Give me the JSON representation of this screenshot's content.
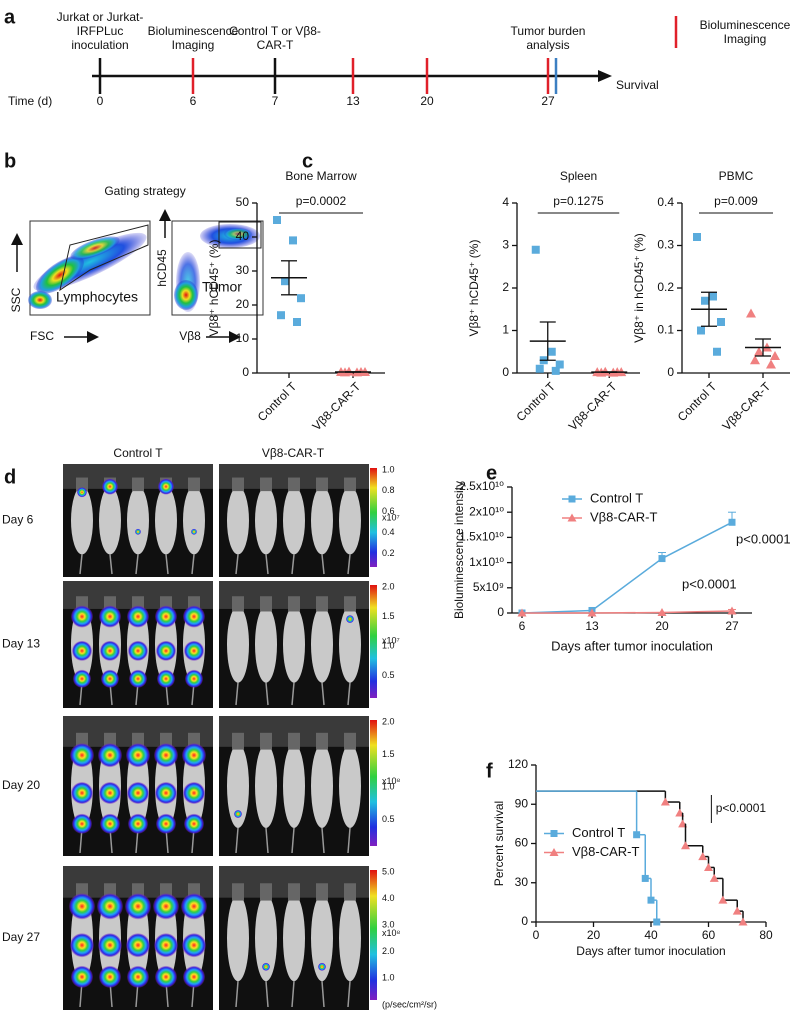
{
  "figure": {
    "panel_labels": [
      "a",
      "b",
      "c",
      "d",
      "e",
      "f"
    ],
    "timeline": {
      "time_label": "Time (d)",
      "end_label": "Survival",
      "legend": "Bioluminescence Imaging",
      "legend_color": "#e0202a",
      "events": [
        {
          "day": 0,
          "label": "Jurkat or Jurkat-IRFPLuc inoculation",
          "color": "#111111"
        },
        {
          "day": 6,
          "label": "Bioluminescence Imaging",
          "color": "#e0202a"
        },
        {
          "day": 7,
          "label": "Control T or Vβ8-CAR-T",
          "color": "#111111"
        },
        {
          "day": 13,
          "color": "#e0202a"
        },
        {
          "day": 20,
          "color": "#e0202a"
        },
        {
          "day": 27,
          "label": "Tumor burden analysis",
          "color": "#e0202a"
        }
      ]
    },
    "gating": {
      "title": "Gating strategy",
      "plot1": {
        "ylabel": "SSC",
        "xlabel": "FSC",
        "gate": "Lymphocytes"
      },
      "plot2": {
        "ylabel": "hCD45",
        "xlabel": "Vβ8",
        "gate": "Tumor"
      }
    },
    "imaging": {
      "columns": [
        "Control T",
        "Vβ8-CAR-T"
      ],
      "rows": [
        {
          "label": "Day 6",
          "scale_ticks": [
            "1.0",
            "0.8",
            "0.6",
            "0.4",
            "0.2"
          ],
          "multiplier": "x10⁷"
        },
        {
          "label": "Day 13",
          "scale_ticks": [
            "2.0",
            "1.5",
            "1.0",
            "0.5"
          ],
          "multiplier": "x10⁷"
        },
        {
          "label": "Day 20",
          "scale_ticks": [
            "2.0",
            "1.5",
            "1.0",
            "0.5"
          ],
          "multiplier": "x10⁸"
        },
        {
          "label": "Day 27",
          "scale_ticks": [
            "5.0",
            "4.0",
            "3.0",
            "2.0",
            "1.0"
          ],
          "multiplier": "x10⁸"
        }
      ],
      "unit": "(p/sec/cm²/sr)"
    }
  },
  "chart_data": [
    {
      "type": "dot",
      "title": "Bone Marrow",
      "ylabel": "Vβ8⁺ hCD45⁺ (%)",
      "categories": [
        "Control T",
        "Vβ8-CAR-T"
      ],
      "groups": [
        {
          "color": "#5aabdc",
          "marker": "square",
          "values": [
            45,
            39,
            27,
            22,
            17,
            15
          ],
          "mean": 28,
          "sem": 5
        },
        {
          "color": "#f08080",
          "marker": "triangle",
          "values": [
            0.3,
            0.2,
            0.4,
            0.3,
            0.2,
            0.3
          ],
          "mean": 0.3,
          "sem": 0.05
        }
      ],
      "ylim": [
        0,
        50
      ],
      "yticks": [
        0,
        10,
        20,
        30,
        40,
        50
      ],
      "annotation": "p=0.0002"
    },
    {
      "type": "dot",
      "title": "Spleen",
      "ylabel": "Vβ8⁺ hCD45⁺ (%)",
      "categories": [
        "Control T",
        "Vβ8-CAR-T"
      ],
      "groups": [
        {
          "color": "#5aabdc",
          "marker": "square",
          "values": [
            2.9,
            0.5,
            0.3,
            0.2,
            0.1,
            0.05
          ],
          "mean": 0.75,
          "sem": 0.45
        },
        {
          "color": "#f08080",
          "marker": "triangle",
          "values": [
            0.02,
            0.01,
            0.03,
            0.02,
            0.01,
            0.02
          ],
          "mean": 0.02,
          "sem": 0.005
        }
      ],
      "ylim": [
        0,
        4
      ],
      "yticks": [
        0,
        1,
        2,
        3,
        4
      ],
      "annotation": "p=0.1275"
    },
    {
      "type": "dot",
      "title": "PBMC",
      "ylabel": "Vβ8⁺ in hCD45⁺ (%)",
      "categories": [
        "Control T",
        "Vβ8-CAR-T"
      ],
      "groups": [
        {
          "color": "#5aabdc",
          "marker": "square",
          "values": [
            0.32,
            0.18,
            0.17,
            0.12,
            0.1,
            0.05
          ],
          "mean": 0.15,
          "sem": 0.04
        },
        {
          "color": "#f08080",
          "marker": "triangle",
          "values": [
            0.14,
            0.06,
            0.05,
            0.04,
            0.03,
            0.02
          ],
          "mean": 0.06,
          "sem": 0.02
        }
      ],
      "ylim": [
        0,
        0.4
      ],
      "yticks": [
        0,
        0.1,
        0.2,
        0.3,
        0.4
      ],
      "annotation": "p=0.009"
    },
    {
      "type": "line",
      "xlabel": "Days after tumor inoculation",
      "ylabel": "Bioluminescence intensity",
      "x": [
        6,
        13,
        20,
        27
      ],
      "xlim": [
        5,
        29
      ],
      "xticks": [
        6,
        13,
        20,
        27
      ],
      "ylim": [
        0,
        25000000000
      ],
      "yticks": [
        0,
        {
          "value": 5000000000,
          "label": "5x10⁹"
        },
        {
          "value": 10000000000,
          "label": "1x10¹⁰"
        },
        {
          "value": 15000000000,
          "label": "1.5x10¹⁰"
        },
        {
          "value": 20000000000,
          "label": "2x10¹⁰"
        },
        {
          "value": 25000000000,
          "label": "2.5x10¹⁰"
        }
      ],
      "series": [
        {
          "name": "Control T",
          "color": "#5aabdc",
          "marker": "square",
          "values": [
            0,
            500000000,
            10800000000,
            18000000000
          ],
          "errors": [
            0,
            0,
            1200000000,
            2000000000
          ]
        },
        {
          "name": "Vβ8-CAR-T",
          "color": "#f08080",
          "marker": "triangle",
          "values": [
            0,
            0,
            100000000,
            400000000
          ],
          "errors": [
            0,
            0,
            0,
            300000000
          ]
        }
      ],
      "legend": "upper-left",
      "annotations": [
        "p<0.0001",
        "p<0.0001"
      ]
    },
    {
      "type": "survival",
      "xlabel": "Days after tumor inoculation",
      "ylabel": "Percent survival",
      "xlim": [
        0,
        80
      ],
      "xticks": [
        0,
        20,
        40,
        60,
        80
      ],
      "ylim": [
        0,
        120
      ],
      "yticks": [
        0,
        30,
        60,
        90,
        120
      ],
      "series": [
        {
          "name": "Control T",
          "color": "#5aabdc",
          "marker": "square",
          "x": [
            0,
            35,
            38,
            40,
            42
          ],
          "values": [
            100,
            66.7,
            33.3,
            16.7,
            0
          ]
        },
        {
          "name": "Vβ8-CAR-T",
          "color": "#f08080",
          "marker": "triangle",
          "x": [
            0,
            45,
            50,
            51,
            52,
            58,
            60,
            62,
            65,
            70,
            72
          ],
          "values": [
            100,
            91.7,
            83.3,
            75,
            58.3,
            50,
            41.7,
            33.3,
            16.7,
            8.3,
            0
          ]
        }
      ],
      "legend": "center-left",
      "annotations": [
        "p<0.0001"
      ]
    }
  ]
}
